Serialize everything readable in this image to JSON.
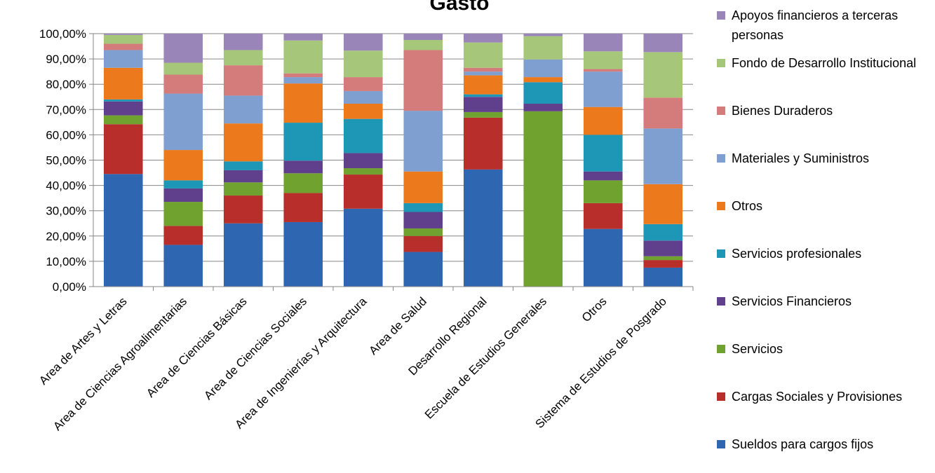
{
  "chart_data": {
    "type": "bar",
    "stacked": true,
    "title": "Gasto",
    "ylim": [
      0,
      1
    ],
    "yticks": [
      "0,00%",
      "10,00%",
      "20,00%",
      "30,00%",
      "40,00%",
      "50,00%",
      "60,00%",
      "70,00%",
      "80,00%",
      "90,00%",
      "100,00%"
    ],
    "grid": true,
    "legend_position": "right",
    "categories": [
      "Area de Artes y Letras",
      "Area de Ciencias Agroalimentarias",
      "Area de Ciencias Básicas",
      "Area de Ciencias Sociales",
      "Area de Ingenierías y Arquitectura",
      "Area de Salud",
      "Desarrollo Regional",
      "Escuela de Estudios Generales",
      "Otros",
      "Sistema de Estudios de Posgrado"
    ],
    "series": [
      {
        "name": "Sueldos para cargos fijos",
        "color": "#2E66B1",
        "values": [
          0.445,
          0.165,
          0.25,
          0.255,
          0.308,
          0.137,
          0.463,
          0.0,
          0.228,
          0.075
        ]
      },
      {
        "name": "Cargas Sociales y Provisiones",
        "color": "#B72E2B",
        "values": [
          0.197,
          0.075,
          0.11,
          0.115,
          0.135,
          0.063,
          0.205,
          0.0,
          0.102,
          0.03
        ]
      },
      {
        "name": "Servicios",
        "color": "#6FA22F",
        "values": [
          0.035,
          0.095,
          0.052,
          0.078,
          0.025,
          0.03,
          0.022,
          0.693,
          0.09,
          0.015
        ]
      },
      {
        "name": "Servicios Financieros",
        "color": "#603F8C",
        "values": [
          0.055,
          0.053,
          0.048,
          0.05,
          0.06,
          0.065,
          0.06,
          0.03,
          0.035,
          0.062
        ]
      },
      {
        "name": "Servicios profesionales",
        "color": "#1E96B5",
        "values": [
          0.008,
          0.032,
          0.035,
          0.15,
          0.135,
          0.035,
          0.01,
          0.085,
          0.145,
          0.065
        ]
      },
      {
        "name": "Otros",
        "color": "#EC7A1C",
        "values": [
          0.125,
          0.12,
          0.15,
          0.155,
          0.06,
          0.125,
          0.075,
          0.02,
          0.11,
          0.158
        ]
      },
      {
        "name": "Materiales y Suministros",
        "color": "#7F9FD0",
        "values": [
          0.07,
          0.223,
          0.11,
          0.025,
          0.05,
          0.24,
          0.015,
          0.07,
          0.14,
          0.22
        ]
      },
      {
        "name": "Bienes Duraderos",
        "color": "#D47C7B",
        "values": [
          0.025,
          0.075,
          0.12,
          0.015,
          0.055,
          0.24,
          0.015,
          0.0,
          0.01,
          0.122
        ]
      },
      {
        "name": "Fondo de Desarrollo Institucional",
        "color": "#A6C67A",
        "values": [
          0.035,
          0.047,
          0.06,
          0.13,
          0.105,
          0.04,
          0.1,
          0.092,
          0.07,
          0.18
        ]
      },
      {
        "name": "Apoyos financieros a terceras personas",
        "color": "#9A85B8",
        "values": [
          0.005,
          0.115,
          0.065,
          0.027,
          0.067,
          0.025,
          0.035,
          0.01,
          0.07,
          0.073
        ]
      }
    ]
  }
}
